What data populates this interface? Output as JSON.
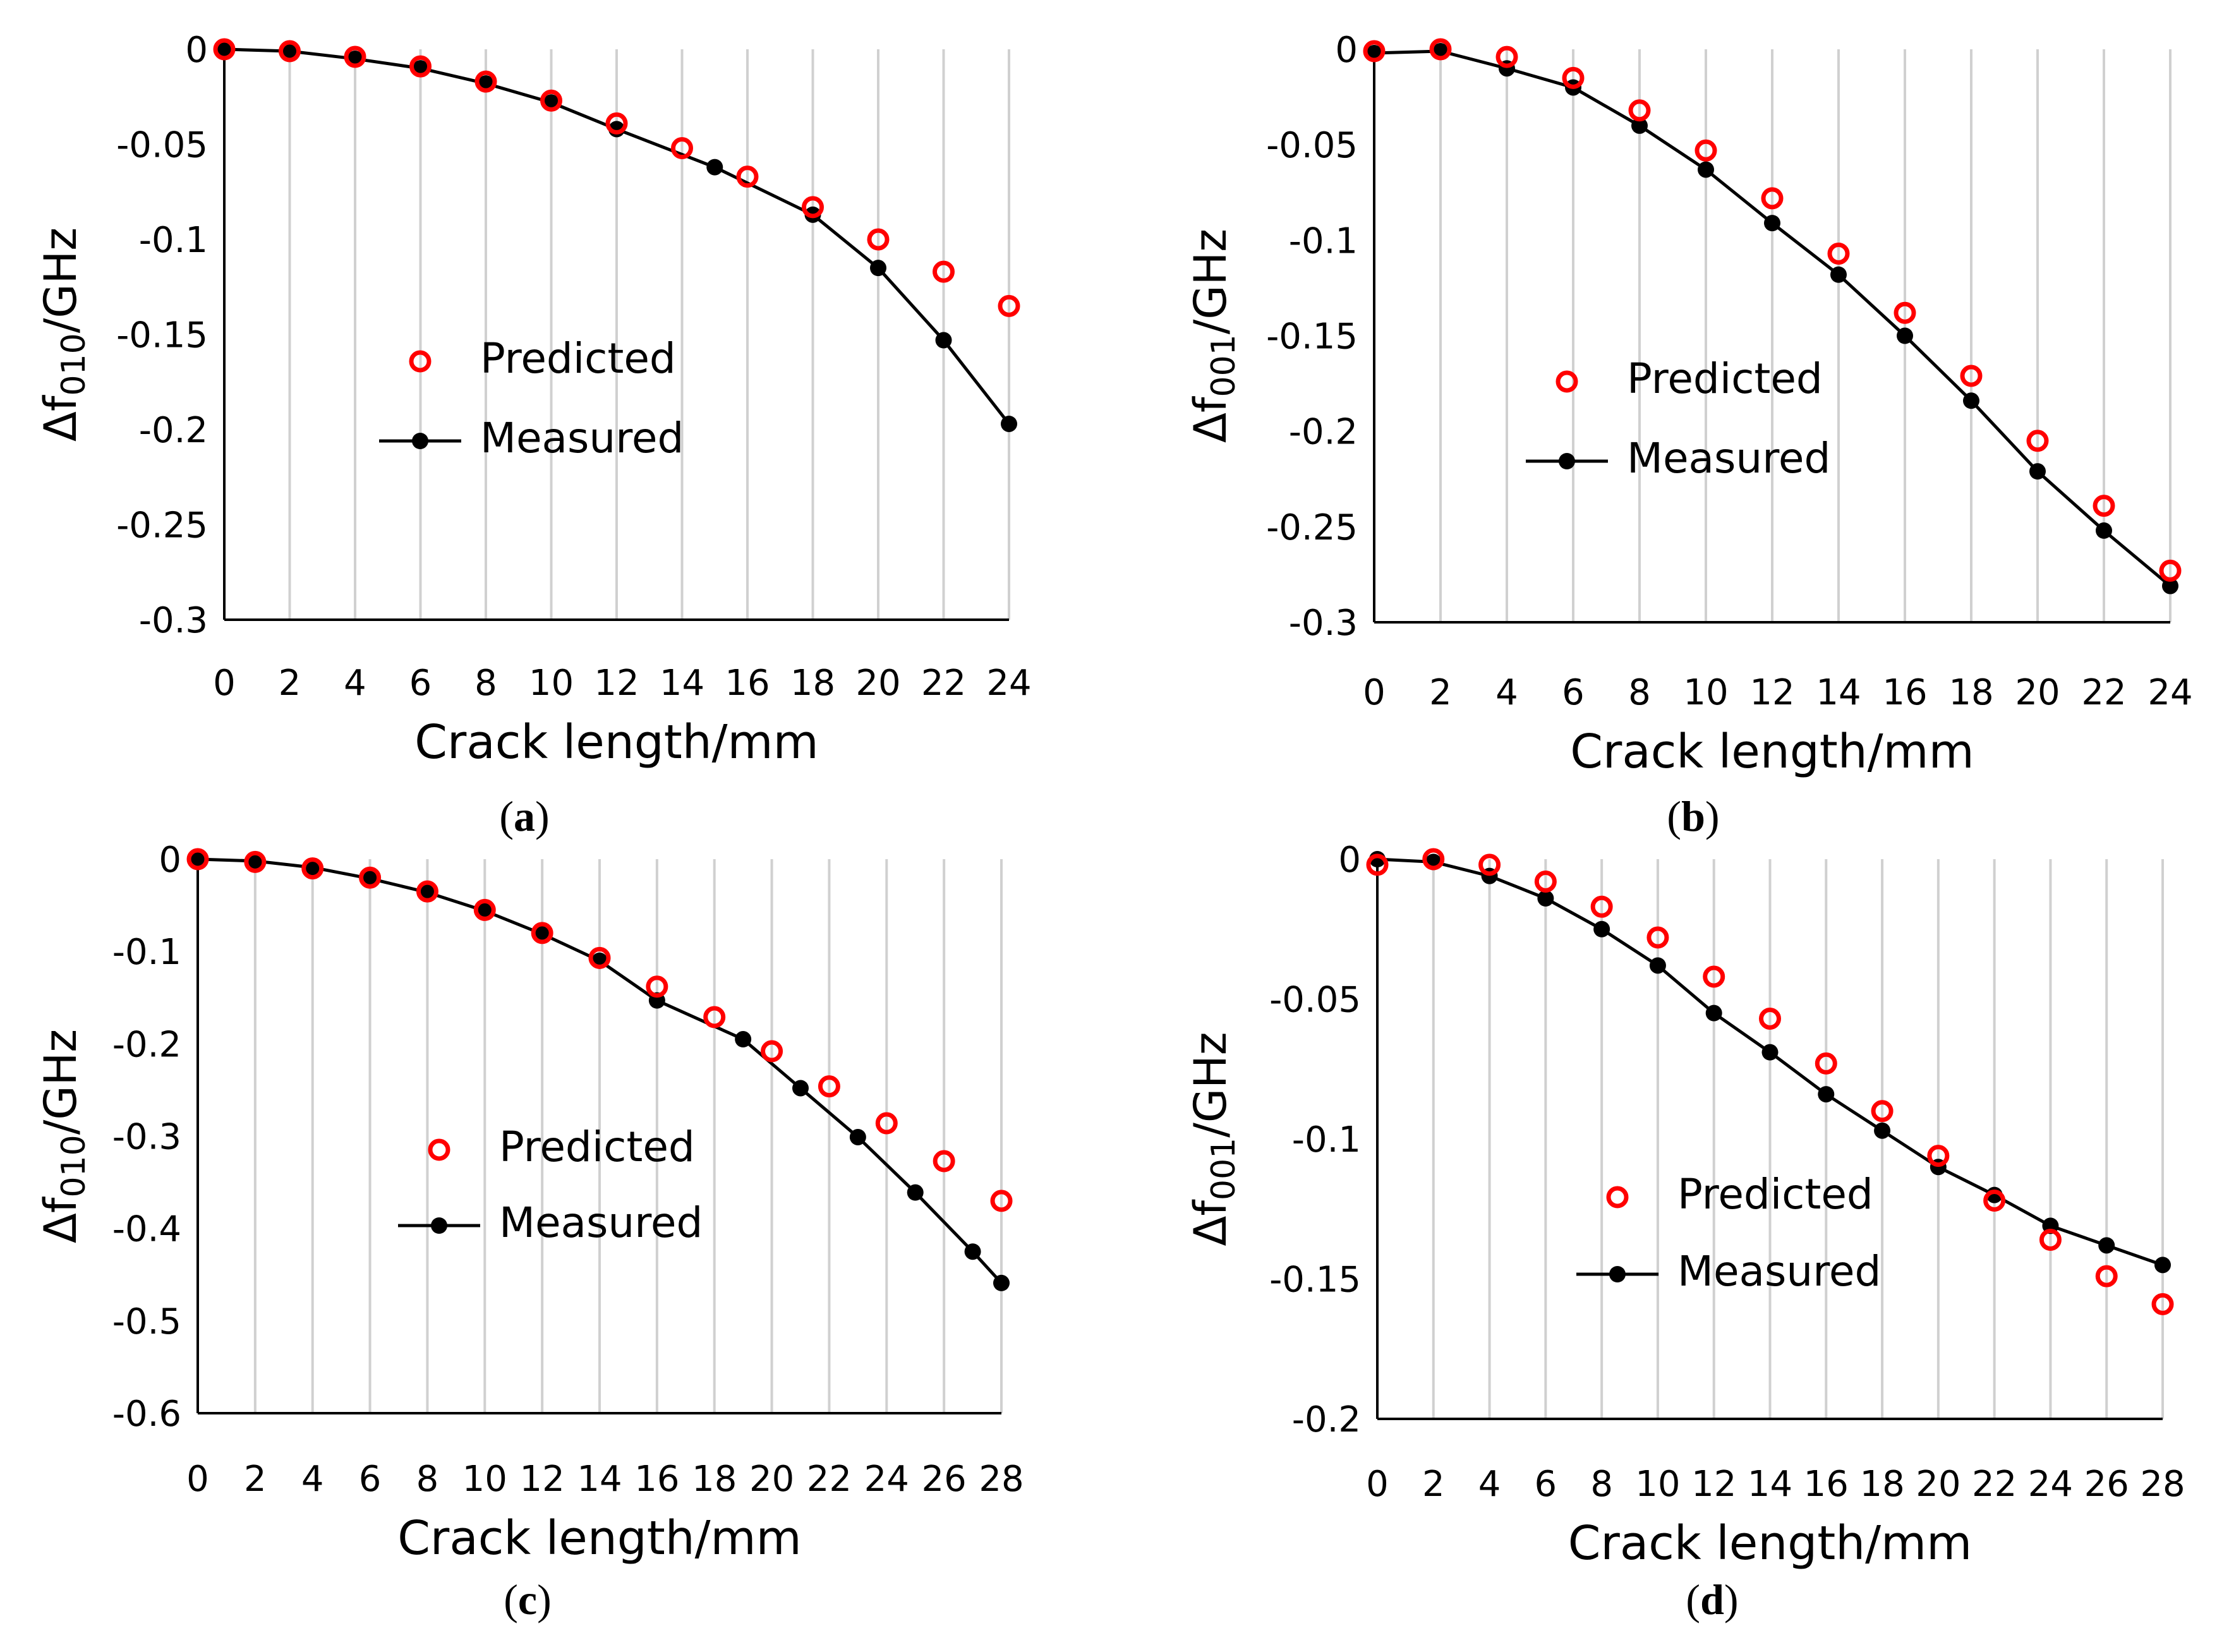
{
  "chart_data": [
    {
      "id": "a",
      "type": "line",
      "caption_letter": "a",
      "ylabel_prefix": "Δf",
      "ylabel_sub": "010",
      "ylabel_suffix": "/GHz",
      "xlabel": "Crack length/mm",
      "xlim": [
        0,
        24
      ],
      "ylim": [
        -0.3,
        0
      ],
      "xticks": [
        0,
        2,
        4,
        6,
        8,
        10,
        12,
        14,
        16,
        18,
        20,
        22,
        24
      ],
      "xtick_labels": [
        "0",
        "2",
        "4",
        "6",
        "8",
        "10",
        "12",
        "14",
        "16",
        "18",
        "20",
        "22",
        "24"
      ],
      "yticks": [
        0,
        -0.05,
        -0.1,
        -0.15,
        -0.2,
        -0.25,
        -0.3
      ],
      "ytick_labels": [
        "0",
        "-0.05",
        "-0.1",
        "-0.15",
        "-0.2",
        "-0.25",
        "-0.3"
      ],
      "legend": {
        "predicted": "Predicted",
        "measured": "Measured"
      },
      "series": [
        {
          "name": "Predicted",
          "style": "red-open-circle",
          "x": [
            0,
            2,
            4,
            6,
            8,
            10,
            12,
            14,
            16,
            18,
            20,
            22,
            24
          ],
          "y": [
            0,
            -0.001,
            -0.004,
            -0.009,
            -0.017,
            -0.027,
            -0.039,
            -0.052,
            -0.067,
            -0.083,
            -0.1,
            -0.117,
            -0.135
          ]
        },
        {
          "name": "Measured",
          "style": "black-line-dot",
          "x": [
            0,
            2,
            4,
            6,
            8,
            10,
            12,
            15,
            18,
            20,
            22,
            24
          ],
          "y": [
            0,
            -0.001,
            -0.005,
            -0.01,
            -0.018,
            -0.028,
            -0.042,
            -0.062,
            -0.087,
            -0.115,
            -0.153,
            -0.197
          ]
        }
      ]
    },
    {
      "id": "b",
      "type": "line",
      "caption_letter": "b",
      "ylabel_prefix": "Δf",
      "ylabel_sub": "001",
      "ylabel_suffix": "/GHz",
      "xlabel": "Crack length/mm",
      "xlim": [
        0,
        24
      ],
      "ylim": [
        -0.3,
        0
      ],
      "xticks": [
        0,
        2,
        4,
        6,
        8,
        10,
        12,
        14,
        16,
        18,
        20,
        22,
        24
      ],
      "xtick_labels": [
        "0",
        "2",
        "4",
        "6",
        "8",
        "10",
        "12",
        "14",
        "16",
        "18",
        "20",
        "22",
        "24"
      ],
      "yticks": [
        0,
        -0.05,
        -0.1,
        -0.15,
        -0.2,
        -0.25,
        -0.3
      ],
      "ytick_labels": [
        "0",
        "-0.05",
        "-0.1",
        "-0.15",
        "-0.2",
        "-0.25",
        "-0.3"
      ],
      "legend": {
        "predicted": "Predicted",
        "measured": "Measured"
      },
      "series": [
        {
          "name": "Predicted",
          "style": "red-open-circle",
          "x": [
            0,
            2,
            4,
            6,
            8,
            10,
            12,
            14,
            16,
            18,
            20,
            22,
            24
          ],
          "y": [
            -0.001,
            0,
            -0.004,
            -0.015,
            -0.032,
            -0.053,
            -0.078,
            -0.107,
            -0.138,
            -0.171,
            -0.205,
            -0.239,
            -0.273
          ]
        },
        {
          "name": "Measured",
          "style": "black-line-dot",
          "x": [
            0,
            2,
            4,
            6,
            8,
            10,
            12,
            14,
            16,
            18,
            20,
            22,
            24
          ],
          "y": [
            -0.002,
            -0.001,
            -0.01,
            -0.02,
            -0.04,
            -0.063,
            -0.091,
            -0.118,
            -0.15,
            -0.184,
            -0.221,
            -0.252,
            -0.281
          ]
        }
      ]
    },
    {
      "id": "c",
      "type": "line",
      "caption_letter": "c",
      "ylabel_prefix": "Δf",
      "ylabel_sub": "010",
      "ylabel_suffix": "/GHz",
      "xlabel": "Crack length/mm",
      "xlim": [
        0,
        28
      ],
      "ylim": [
        -0.6,
        0
      ],
      "xticks": [
        0,
        2,
        4,
        6,
        8,
        10,
        12,
        14,
        16,
        18,
        20,
        22,
        24,
        26,
        28
      ],
      "xtick_labels": [
        "0",
        "2",
        "4",
        "6",
        "8",
        "10",
        "12",
        "14",
        "16",
        "18",
        "20",
        "22",
        "24",
        "26",
        "28"
      ],
      "yticks": [
        0,
        -0.1,
        -0.2,
        -0.3,
        -0.4,
        -0.5,
        -0.6
      ],
      "ytick_labels": [
        "0",
        "-0.1",
        "-0.2",
        "-0.3",
        "-0.4",
        "-0.5",
        "-0.6"
      ],
      "legend": {
        "predicted": "Predicted",
        "measured": "Measured"
      },
      "series": [
        {
          "name": "Predicted",
          "style": "red-open-circle",
          "x": [
            0,
            2,
            4,
            6,
            8,
            10,
            12,
            14,
            16,
            18,
            20,
            22,
            24,
            26,
            28
          ],
          "y": [
            0,
            -0.003,
            -0.01,
            -0.02,
            -0.035,
            -0.055,
            -0.08,
            -0.107,
            -0.138,
            -0.171,
            -0.208,
            -0.246,
            -0.286,
            -0.327,
            -0.37
          ]
        },
        {
          "name": "Measured",
          "style": "black-line-dot",
          "x": [
            0,
            2,
            4,
            6,
            8,
            10,
            12,
            14,
            16,
            19,
            21,
            23,
            25,
            27,
            28
          ],
          "y": [
            0,
            -0.002,
            -0.009,
            -0.021,
            -0.036,
            -0.056,
            -0.081,
            -0.11,
            -0.153,
            -0.195,
            -0.248,
            -0.301,
            -0.361,
            -0.425,
            -0.459
          ]
        }
      ]
    },
    {
      "id": "d",
      "type": "line",
      "caption_letter": "d",
      "ylabel_prefix": "Δf",
      "ylabel_sub": "001",
      "ylabel_suffix": "/GHz",
      "xlabel": "Crack length/mm",
      "xlim": [
        0,
        28
      ],
      "ylim": [
        -0.2,
        0
      ],
      "xticks": [
        0,
        2,
        4,
        6,
        8,
        10,
        12,
        14,
        16,
        18,
        20,
        22,
        24,
        26,
        28
      ],
      "xtick_labels": [
        "0",
        "2",
        "4",
        "6",
        "8",
        "10",
        "12",
        "14",
        "16",
        "18",
        "20",
        "22",
        "24",
        "26",
        "28"
      ],
      "yticks": [
        0,
        -0.05,
        -0.1,
        -0.15,
        -0.2
      ],
      "ytick_labels": [
        "0",
        "-0.05",
        "-0.1",
        "-0.15",
        "-0.2"
      ],
      "legend": {
        "predicted": "Predicted",
        "measured": "Measured"
      },
      "series": [
        {
          "name": "Predicted",
          "style": "red-open-circle",
          "x": [
            0,
            2,
            4,
            6,
            8,
            10,
            12,
            14,
            16,
            18,
            20,
            22,
            24,
            26,
            28
          ],
          "y": [
            -0.002,
            0,
            -0.002,
            -0.008,
            -0.017,
            -0.028,
            -0.042,
            -0.057,
            -0.073,
            -0.09,
            -0.106,
            -0.122,
            -0.136,
            -0.149,
            -0.159
          ]
        },
        {
          "name": "Measured",
          "style": "black-line-dot",
          "x": [
            0,
            2,
            4,
            6,
            8,
            10,
            12,
            14,
            16,
            18,
            20,
            22,
            24,
            26,
            28
          ],
          "y": [
            0,
            -0.001,
            -0.006,
            -0.014,
            -0.025,
            -0.038,
            -0.055,
            -0.069,
            -0.084,
            -0.097,
            -0.11,
            -0.12,
            -0.131,
            -0.138,
            -0.145
          ]
        }
      ]
    }
  ]
}
